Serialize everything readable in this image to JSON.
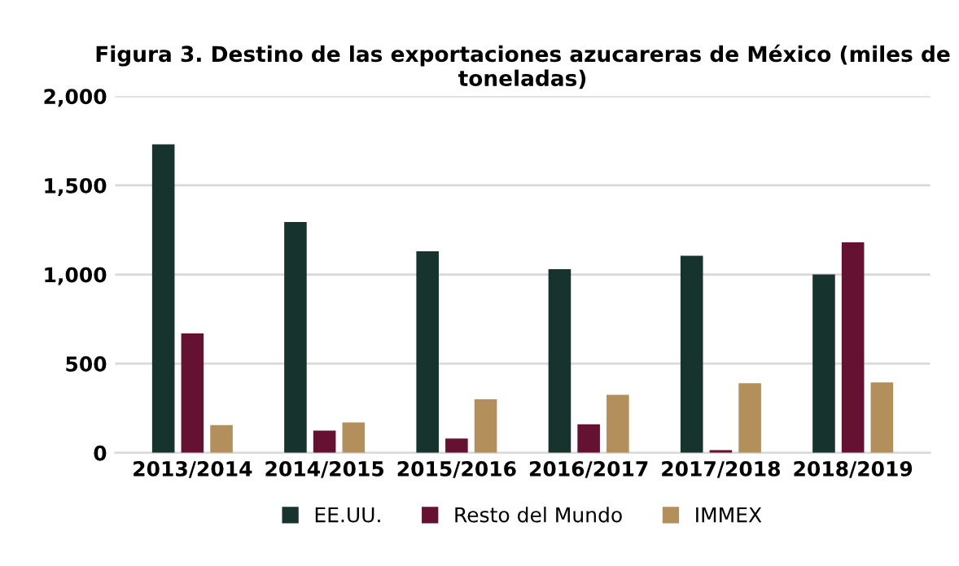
{
  "chart_data": {
    "type": "bar",
    "title": "Figura 3. Destino de las exportaciones azucareras de México (miles de toneladas)",
    "categories": [
      "2013/2014",
      "2014/2015",
      "2015/2016",
      "2016/2017",
      "2017/2018",
      "2018/2019"
    ],
    "series": [
      {
        "name": "EE.UU.",
        "color": "#17332d",
        "values": [
          1730,
          1295,
          1130,
          1030,
          1105,
          1000
        ]
      },
      {
        "name": "Resto del Mundo",
        "color": "#651232",
        "values": [
          670,
          125,
          80,
          160,
          15,
          1180
        ]
      },
      {
        "name": "IMMEX",
        "color": "#b38f5c",
        "values": [
          155,
          170,
          300,
          325,
          390,
          395
        ]
      }
    ],
    "ylim": [
      0,
      2000
    ],
    "yticks": [
      {
        "value": 0,
        "label": "0"
      },
      {
        "value": 500,
        "label": "500"
      },
      {
        "value": 1000,
        "label": "1,000"
      },
      {
        "value": 1500,
        "label": "1,500"
      },
      {
        "value": 2000,
        "label": "2,000"
      }
    ],
    "grid": "y",
    "legend": "bottom"
  }
}
